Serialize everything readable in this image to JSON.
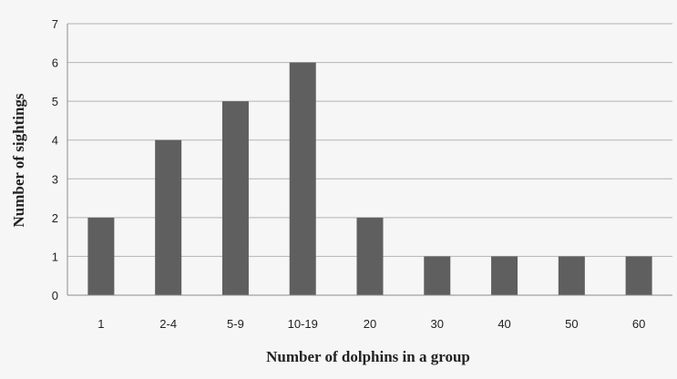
{
  "chart_data": {
    "type": "bar",
    "title": "",
    "xlabel": "Number of dolphins in a group",
    "ylabel": "Number of sightings",
    "categories": [
      "1",
      "2-4",
      "5-9",
      "10-19",
      "20",
      "30",
      "40",
      "50",
      "60"
    ],
    "values": [
      2,
      4,
      5,
      6,
      2,
      1,
      1,
      1,
      1
    ],
    "ylim": [
      0,
      7
    ],
    "yticks": [
      "0",
      "1",
      "2",
      "3",
      "4",
      "5",
      "6",
      "7"
    ],
    "grid": true,
    "legend": "none"
  },
  "colors": {
    "background": "#f6f6f6",
    "bar": "#5f5f5f",
    "gridline": "#b3b3b3",
    "axis": "#8c8c8c",
    "text": "#222222"
  }
}
